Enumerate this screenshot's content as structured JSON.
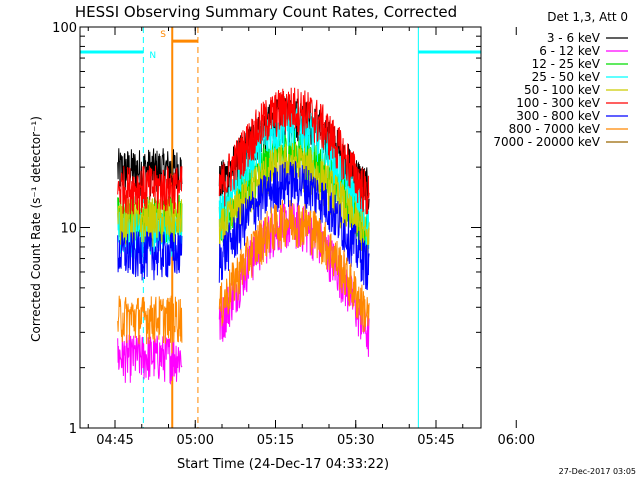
{
  "chart_data": {
    "type": "line",
    "title": "HESSI Observing Summary Count Rates, Corrected",
    "xlabel": "Start Time (24-Dec-17 04:33:22)",
    "ylabel": "Corrected Count Rate (s⁻¹ detector⁻¹)",
    "yscale": "log",
    "ylim": [
      1,
      100
    ],
    "xlim_minutes": [
      33.37,
      77.2
    ],
    "x_ticks": [
      {
        "label": "04:45",
        "minute": 45
      },
      {
        "label": "05:00",
        "minute": 60
      },
      {
        "label": "05:15",
        "minute": 75
      },
      {
        "label": "05:30",
        "minute": 90
      },
      {
        "label": "05:45",
        "minute": 105
      },
      {
        "label": "06:00",
        "minute": 120
      }
    ],
    "y_ticks": [
      {
        "label": "1",
        "value": 1
      },
      {
        "label": "10",
        "value": 10
      },
      {
        "label": "100",
        "value": 100
      }
    ],
    "legend_title": "Det 1,3, Att 0",
    "legend_position": "right",
    "series": [
      {
        "name": "3 - 6 keV",
        "color": "#000000",
        "level": 19.5,
        "peak": 36
      },
      {
        "name": "6 - 12 keV",
        "color": "#ff00ff",
        "level": 2.3,
        "peak": 10.5
      },
      {
        "name": "12 - 25 keV",
        "color": "#00dd00",
        "level": 11.5,
        "peak": 24
      },
      {
        "name": "25 - 50 keV",
        "color": "#00ffff",
        "level": 9.5,
        "peak": 33
      },
      {
        "name": "50 - 100 keV",
        "color": "#cccc00",
        "level": 11,
        "peak": 21
      },
      {
        "name": "100 - 300 keV",
        "color": "#ff0000",
        "level": 16,
        "peak": 40
      },
      {
        "name": "300 - 800 keV",
        "color": "#0000ff",
        "level": 7.5,
        "peak": 17
      },
      {
        "name": "800 - 7000 keV",
        "color": "#ff8800",
        "level": 3.6,
        "peak": 11
      },
      {
        "name": "7000 - 20000 keV",
        "color": "#996600",
        "level": null,
        "peak": null
      }
    ],
    "segments": [
      {
        "start": 45.5,
        "end": 57.5,
        "profile": "flat"
      },
      {
        "start": 64.5,
        "end": 92.5,
        "profile": "peak",
        "peak_at": 78
      }
    ],
    "night_intervals": [
      {
        "label": "N",
        "start": 0,
        "end": 50.3,
        "level": 75
      },
      {
        "label": "",
        "start": 101.7,
        "end": 115.2,
        "level": 75
      }
    ],
    "saa_intervals": [
      {
        "label": "S",
        "start": 55.7,
        "end": 60.5,
        "level": 85
      }
    ],
    "night_label": "N",
    "saa_label": "S",
    "cyan_solid_lines": [
      0,
      101.7
    ],
    "cyan_dashed_lines": [
      50.3,
      115.2
    ],
    "orange_solid_lines": [
      55.7
    ],
    "orange_dashed_lines": [
      60.5
    ],
    "timestamp": "27-Dec-2017 03:05"
  }
}
